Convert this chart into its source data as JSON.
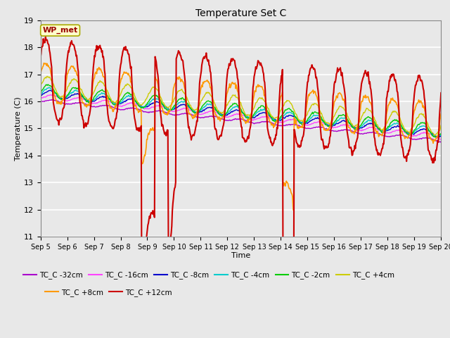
{
  "title": "Temperature Set C",
  "xlabel": "Time",
  "ylabel": "Temperature (C)",
  "ylim": [
    11.0,
    19.0
  ],
  "yticks": [
    11.0,
    12.0,
    13.0,
    14.0,
    15.0,
    16.0,
    17.0,
    18.0,
    19.0
  ],
  "xlim": [
    0,
    15
  ],
  "bg_color": "#e8e8e8",
  "fig_bg_color": "#e8e8e8",
  "series_colors": {
    "TC_C -32cm": "#aa00cc",
    "TC_C -16cm": "#ff44ff",
    "TC_C -8cm": "#0000cc",
    "TC_C -4cm": "#00cccc",
    "TC_C -2cm": "#00cc00",
    "TC_C +4cm": "#cccc00",
    "TC_C +8cm": "#ff9900",
    "TC_C +12cm": "#cc0000"
  },
  "wp_met_label": "WP_met",
  "wp_met_bg": "#ffffcc",
  "wp_met_border": "#aaaa00",
  "wp_met_text_color": "#990000",
  "legend_ncol_row1": 6,
  "legend_ncol_row2": 2
}
